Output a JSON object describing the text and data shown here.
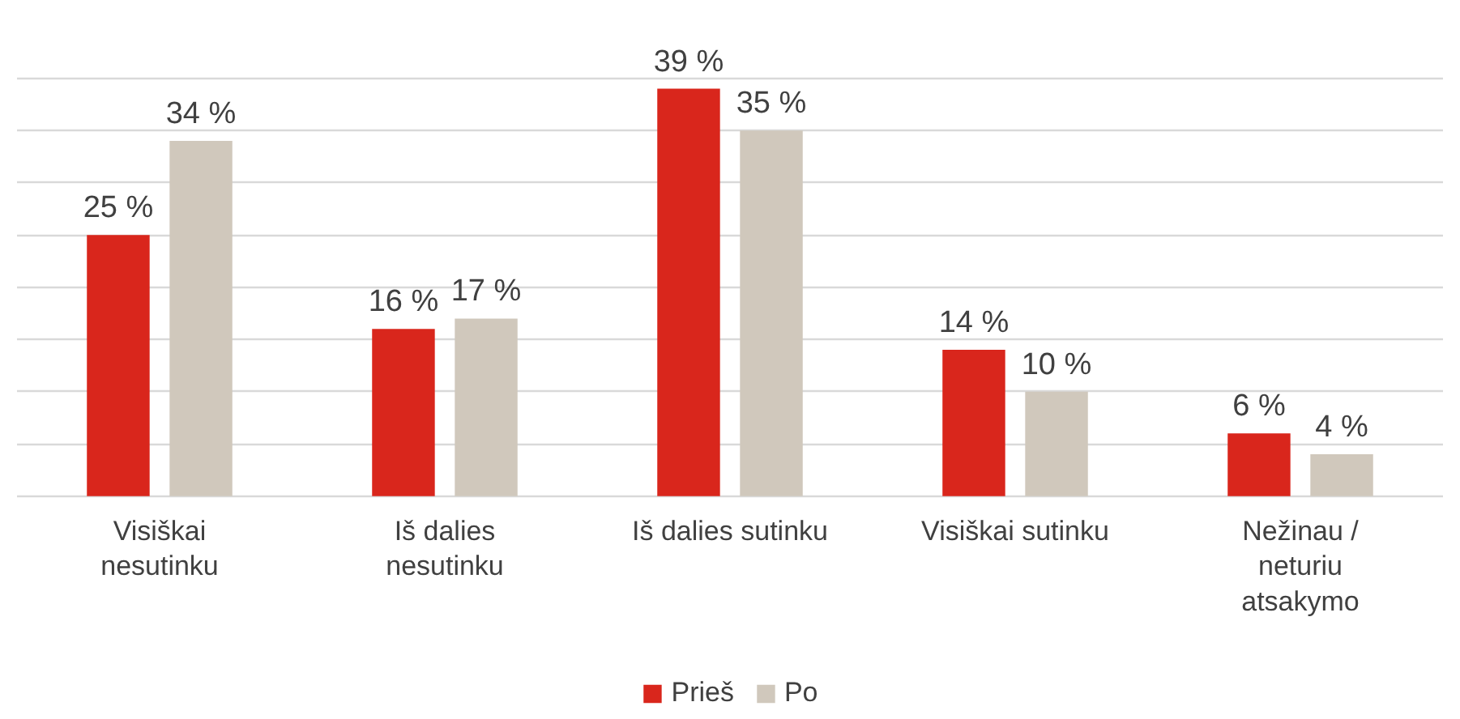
{
  "chart_data": {
    "type": "bar",
    "categories": [
      "Visiškai\nnesutinku",
      "Iš dalies\nnesutinku",
      "Iš dalies sutinku",
      "Visiškai sutinku",
      "Nežinau /\nneturiu\natsakymo"
    ],
    "series": [
      {
        "name": "Prieš",
        "color": "#d9261c",
        "values": [
          25,
          16,
          39,
          14,
          6
        ],
        "value_labels": [
          "25 %",
          "16 %",
          "39 %",
          "14 %",
          "6 %"
        ]
      },
      {
        "name": "Po",
        "color": "#d0c8bc",
        "values": [
          34,
          17,
          35,
          10,
          4
        ],
        "value_labels": [
          "34 %",
          "17 %",
          "35 %",
          "10 %",
          "4 %"
        ]
      }
    ],
    "yticks": [
      {
        "value": 0,
        "label": null
      },
      {
        "value": 5,
        "label": null
      },
      {
        "value": 10,
        "label": null
      },
      {
        "value": 15,
        "label": null
      },
      {
        "value": 20,
        "label": null
      },
      {
        "value": 25,
        "label": null
      },
      {
        "value": 30,
        "label": null
      },
      {
        "value": 35,
        "label": null
      },
      {
        "value": 40,
        "label": null
      }
    ],
    "grid": "y",
    "legend": "bottom",
    "tick_labels": "x"
  }
}
